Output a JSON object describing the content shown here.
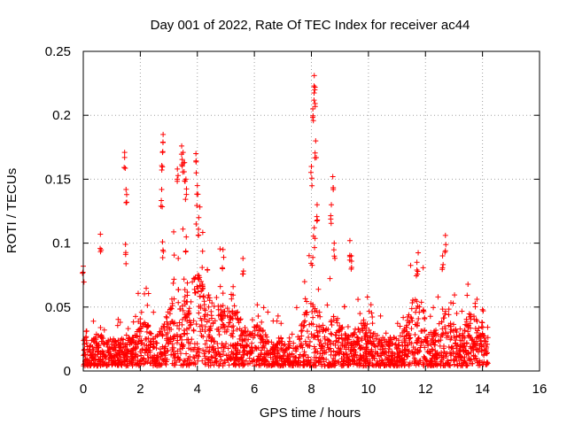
{
  "chart_data": {
    "type": "scatter",
    "title": "Day 001 of 2022, Rate Of TEC Index for receiver ac44",
    "xlabel": "GPS time / hours",
    "ylabel": "ROTI / TECUs",
    "xlim": [
      0,
      16
    ],
    "ylim": [
      0,
      0.25
    ],
    "xticks": [
      0,
      2,
      4,
      6,
      8,
      10,
      12,
      14,
      16
    ],
    "xtick_labels": [
      "0",
      "2",
      "4",
      "6",
      "8",
      "10",
      "12",
      "14",
      "16"
    ],
    "yticks": [
      0,
      0.05,
      0.1,
      0.15,
      0.2,
      0.25
    ],
    "ytick_labels": [
      "0",
      "0.05",
      "0.1",
      "0.15",
      "0.2",
      "0.25"
    ],
    "grid": true,
    "marker": "+",
    "color": "#ff0000",
    "data_time_range": [
      0,
      14.2
    ],
    "series": [
      {
        "name": "ROTI",
        "highlight_points": [
          {
            "x": 0.0,
            "y": 0.082
          },
          {
            "x": 0.6,
            "y": 0.107
          },
          {
            "x": 1.45,
            "y": 0.171
          },
          {
            "x": 1.5,
            "y": 0.142
          },
          {
            "x": 1.48,
            "y": 0.099
          },
          {
            "x": 2.8,
            "y": 0.185
          },
          {
            "x": 2.78,
            "y": 0.171
          },
          {
            "x": 2.75,
            "y": 0.142
          },
          {
            "x": 2.78,
            "y": 0.101
          },
          {
            "x": 3.45,
            "y": 0.176
          },
          {
            "x": 3.5,
            "y": 0.171
          },
          {
            "x": 3.55,
            "y": 0.163
          },
          {
            "x": 3.6,
            "y": 0.15
          },
          {
            "x": 3.3,
            "y": 0.158
          },
          {
            "x": 3.95,
            "y": 0.17
          },
          {
            "x": 4.0,
            "y": 0.145
          },
          {
            "x": 4.05,
            "y": 0.12
          },
          {
            "x": 4.9,
            "y": 0.095
          },
          {
            "x": 5.6,
            "y": 0.088
          },
          {
            "x": 8.1,
            "y": 0.231
          },
          {
            "x": 8.12,
            "y": 0.22
          },
          {
            "x": 8.05,
            "y": 0.205
          },
          {
            "x": 8.15,
            "y": 0.18
          },
          {
            "x": 8.0,
            "y": 0.16
          },
          {
            "x": 8.2,
            "y": 0.13
          },
          {
            "x": 8.1,
            "y": 0.112
          },
          {
            "x": 8.75,
            "y": 0.152
          },
          {
            "x": 8.7,
            "y": 0.13
          },
          {
            "x": 8.8,
            "y": 0.1
          },
          {
            "x": 9.35,
            "y": 0.102
          },
          {
            "x": 9.4,
            "y": 0.09
          },
          {
            "x": 11.7,
            "y": 0.085
          },
          {
            "x": 12.7,
            "y": 0.106
          },
          {
            "x": 12.6,
            "y": 0.09
          },
          {
            "x": 14.0,
            "y": 0.048
          }
        ]
      }
    ]
  }
}
